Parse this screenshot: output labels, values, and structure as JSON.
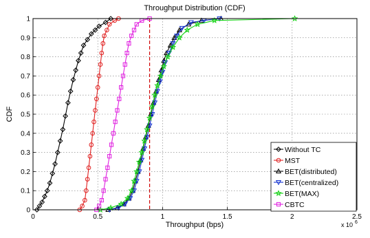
{
  "chart_data": {
    "type": "line",
    "title": "Throughput Distribution (CDF)",
    "xlabel": "Throughput (bps)",
    "ylabel": "CDF",
    "x_multiplier_label": "x 10",
    "x_multiplier_exponent": "6",
    "xlim": [
      0,
      2500000
    ],
    "ylim": [
      0,
      1
    ],
    "x_ticks": [
      0,
      500000,
      1000000,
      1500000,
      2000000,
      2500000
    ],
    "x_tick_labels": [
      "0",
      "0.5",
      "1",
      "1.5",
      "2",
      "2.5"
    ],
    "y_ticks": [
      0,
      0.1,
      0.2,
      0.3,
      0.4,
      0.5,
      0.6,
      0.7,
      0.8,
      0.9,
      1
    ],
    "y_tick_labels": [
      "0",
      "0.1",
      "0.2",
      "0.3",
      "0.4",
      "0.5",
      "0.6",
      "0.7",
      "0.8",
      "0.9",
      "1"
    ],
    "grid": true,
    "legend_position": "bottom-right",
    "reference_line": {
      "x": 900000,
      "color": "#d00000",
      "style": "dashed"
    },
    "series": [
      {
        "name": "Without TC",
        "color": "#000000",
        "marker": "diamond",
        "points": [
          [
            30000,
            0
          ],
          [
            50000,
            0.02
          ],
          [
            70000,
            0.04
          ],
          [
            90000,
            0.07
          ],
          [
            110000,
            0.1
          ],
          [
            130000,
            0.14
          ],
          [
            150000,
            0.19
          ],
          [
            170000,
            0.24
          ],
          [
            190000,
            0.3
          ],
          [
            210000,
            0.36
          ],
          [
            230000,
            0.42
          ],
          [
            250000,
            0.49
          ],
          [
            270000,
            0.56
          ],
          [
            290000,
            0.62
          ],
          [
            310000,
            0.68
          ],
          [
            330000,
            0.73
          ],
          [
            350000,
            0.78
          ],
          [
            370000,
            0.82
          ],
          [
            390000,
            0.86
          ],
          [
            420000,
            0.89
          ],
          [
            450000,
            0.92
          ],
          [
            480000,
            0.94
          ],
          [
            510000,
            0.96
          ],
          [
            560000,
            0.98
          ],
          [
            600000,
            1.0
          ]
        ]
      },
      {
        "name": "MST",
        "color": "#e02020",
        "marker": "circle",
        "points": [
          [
            360000,
            0
          ],
          [
            380000,
            0.02
          ],
          [
            400000,
            0.05
          ],
          [
            410000,
            0.1
          ],
          [
            420000,
            0.16
          ],
          [
            430000,
            0.22
          ],
          [
            440000,
            0.28
          ],
          [
            450000,
            0.34
          ],
          [
            460000,
            0.4
          ],
          [
            470000,
            0.46
          ],
          [
            480000,
            0.52
          ],
          [
            490000,
            0.58
          ],
          [
            500000,
            0.64
          ],
          [
            510000,
            0.7
          ],
          [
            520000,
            0.76
          ],
          [
            530000,
            0.82
          ],
          [
            540000,
            0.87
          ],
          [
            550000,
            0.91
          ],
          [
            570000,
            0.94
          ],
          [
            590000,
            0.97
          ],
          [
            630000,
            0.99
          ],
          [
            660000,
            1.0
          ]
        ]
      },
      {
        "name": "BET(distributed)",
        "color": "#000000",
        "marker": "triangle-up",
        "points": [
          [
            580000,
            0
          ],
          [
            650000,
            0.01
          ],
          [
            700000,
            0.03
          ],
          [
            740000,
            0.06
          ],
          [
            770000,
            0.1
          ],
          [
            790000,
            0.15
          ],
          [
            810000,
            0.2
          ],
          [
            830000,
            0.26
          ],
          [
            850000,
            0.32
          ],
          [
            870000,
            0.38
          ],
          [
            890000,
            0.44
          ],
          [
            910000,
            0.5
          ],
          [
            930000,
            0.56
          ],
          [
            950000,
            0.62
          ],
          [
            970000,
            0.68
          ],
          [
            990000,
            0.73
          ],
          [
            1010000,
            0.78
          ],
          [
            1030000,
            0.82
          ],
          [
            1060000,
            0.86
          ],
          [
            1090000,
            0.9
          ],
          [
            1130000,
            0.94
          ],
          [
            1200000,
            0.97
          ],
          [
            1300000,
            0.99
          ],
          [
            1450000,
            1.0
          ]
        ]
      },
      {
        "name": "BET(centralized)",
        "color": "#1030d0",
        "marker": "triangle-down",
        "points": [
          [
            590000,
            0
          ],
          [
            660000,
            0.01
          ],
          [
            710000,
            0.03
          ],
          [
            750000,
            0.06
          ],
          [
            780000,
            0.1
          ],
          [
            800000,
            0.15
          ],
          [
            820000,
            0.2
          ],
          [
            840000,
            0.26
          ],
          [
            860000,
            0.32
          ],
          [
            880000,
            0.38
          ],
          [
            900000,
            0.44
          ],
          [
            920000,
            0.5
          ],
          [
            940000,
            0.56
          ],
          [
            960000,
            0.62
          ],
          [
            980000,
            0.67
          ],
          [
            1000000,
            0.72
          ],
          [
            1020000,
            0.77
          ],
          [
            1050000,
            0.82
          ],
          [
            1080000,
            0.87
          ],
          [
            1110000,
            0.91
          ],
          [
            1150000,
            0.95
          ],
          [
            1220000,
            0.98
          ],
          [
            1320000,
            0.99
          ],
          [
            1440000,
            1.0
          ]
        ]
      },
      {
        "name": "BET(MAX)",
        "color": "#10d010",
        "marker": "star",
        "points": [
          [
            520000,
            0
          ],
          [
            600000,
            0.01
          ],
          [
            680000,
            0.03
          ],
          [
            730000,
            0.06
          ],
          [
            760000,
            0.1
          ],
          [
            780000,
            0.15
          ],
          [
            800000,
            0.2
          ],
          [
            820000,
            0.25
          ],
          [
            840000,
            0.3
          ],
          [
            860000,
            0.36
          ],
          [
            880000,
            0.42
          ],
          [
            900000,
            0.48
          ],
          [
            920000,
            0.54
          ],
          [
            940000,
            0.6
          ],
          [
            960000,
            0.65
          ],
          [
            985000,
            0.7
          ],
          [
            1010000,
            0.75
          ],
          [
            1040000,
            0.8
          ],
          [
            1080000,
            0.85
          ],
          [
            1130000,
            0.9
          ],
          [
            1190000,
            0.94
          ],
          [
            1270000,
            0.97
          ],
          [
            1400000,
            0.99
          ],
          [
            2020000,
            1.0
          ]
        ]
      },
      {
        "name": "CBTC",
        "color": "#e020e0",
        "marker": "square",
        "points": [
          [
            490000,
            0
          ],
          [
            510000,
            0.02
          ],
          [
            530000,
            0.05
          ],
          [
            545000,
            0.1
          ],
          [
            560000,
            0.16
          ],
          [
            575000,
            0.22
          ],
          [
            590000,
            0.28
          ],
          [
            605000,
            0.34
          ],
          [
            620000,
            0.4
          ],
          [
            635000,
            0.46
          ],
          [
            650000,
            0.52
          ],
          [
            665000,
            0.58
          ],
          [
            680000,
            0.64
          ],
          [
            695000,
            0.7
          ],
          [
            710000,
            0.76
          ],
          [
            725000,
            0.82
          ],
          [
            740000,
            0.87
          ],
          [
            760000,
            0.91
          ],
          [
            780000,
            0.94
          ],
          [
            800000,
            0.97
          ],
          [
            840000,
            0.99
          ],
          [
            900000,
            1.0
          ]
        ]
      }
    ]
  }
}
